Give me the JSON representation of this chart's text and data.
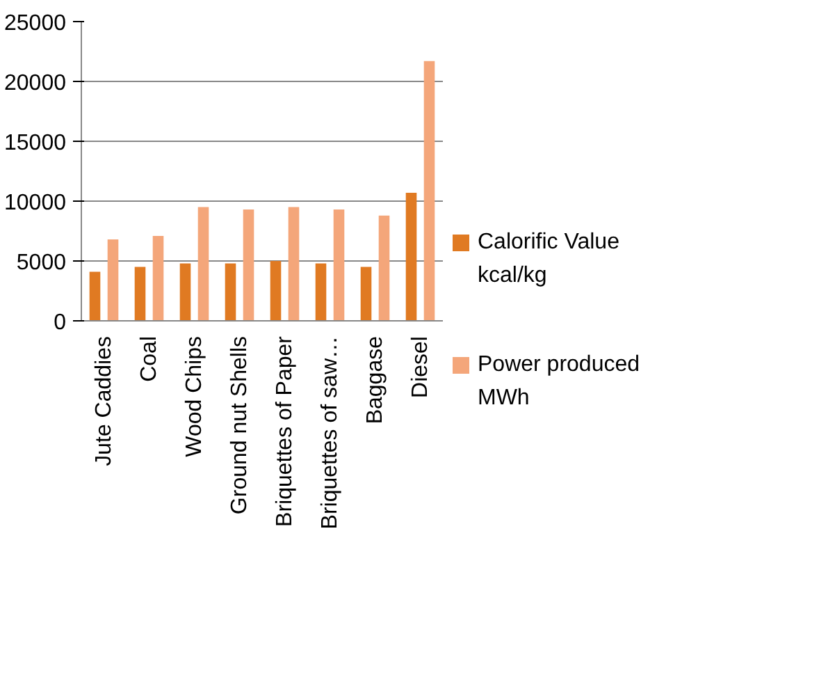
{
  "chart_data": {
    "type": "bar",
    "categories": [
      "Jute Caddies",
      "Coal",
      "Wood Chips",
      "Ground nut Shells",
      "Briquettes of Paper",
      "Briquettes of saw…",
      "Baggase",
      "Diesel"
    ],
    "series": [
      {
        "name": "Calorific Value kcal/kg",
        "color": "#e07a22",
        "values": [
          4100,
          4500,
          4800,
          4800,
          5000,
          4800,
          4500,
          10700
        ]
      },
      {
        "name": "Power produced MWh",
        "color": "#f4a67a",
        "values": [
          6800,
          7100,
          9500,
          9300,
          9500,
          9300,
          8800,
          21700
        ]
      }
    ],
    "ylim": [
      0,
      25000
    ],
    "yticks": [
      0,
      5000,
      10000,
      15000,
      20000,
      25000
    ],
    "grid": "y",
    "legend": "right"
  }
}
